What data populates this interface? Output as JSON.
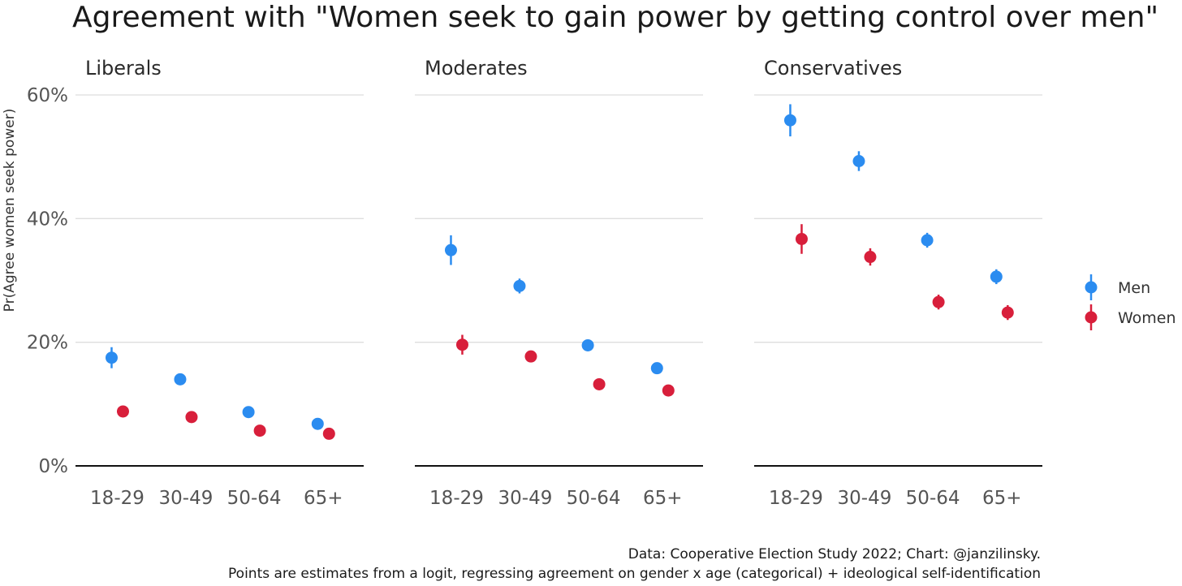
{
  "chart_data": {
    "type": "scatter",
    "title": "Agreement with \"Women seek to gain power by getting control over men\"",
    "ylabel": "Pr(Agree women seek power)",
    "xlabel": "",
    "ylim": [
      0,
      60
    ],
    "yticks": [
      0,
      20,
      40,
      60
    ],
    "ytick_labels": [
      "0%",
      "20%",
      "40%",
      "60%"
    ],
    "categories": [
      "18-29",
      "30-49",
      "50-64",
      "65+"
    ],
    "grid": true,
    "legend_position": "right",
    "colors": {
      "Men": "#2b8cf0",
      "Women": "#d81f3b"
    },
    "panels": [
      {
        "name": "Liberals",
        "series": [
          {
            "name": "Men",
            "values": [
              17.5,
              14.0,
              8.7,
              6.8
            ],
            "lower": [
              15.8,
              13.2,
              8.0,
              6.0
            ],
            "upper": [
              19.2,
              14.8,
              9.4,
              7.6
            ]
          },
          {
            "name": "Women",
            "values": [
              8.8,
              7.9,
              5.7,
              5.2
            ],
            "lower": [
              8.0,
              7.2,
              5.0,
              4.6
            ],
            "upper": [
              9.6,
              8.6,
              6.4,
              5.8
            ]
          }
        ]
      },
      {
        "name": "Moderates",
        "series": [
          {
            "name": "Men",
            "values": [
              34.9,
              29.1,
              19.5,
              15.8
            ],
            "lower": [
              32.5,
              27.9,
              18.7,
              15.0
            ],
            "upper": [
              37.3,
              30.3,
              20.3,
              16.6
            ]
          },
          {
            "name": "Women",
            "values": [
              19.6,
              17.7,
              13.2,
              12.2
            ],
            "lower": [
              18.0,
              16.9,
              12.4,
              11.4
            ],
            "upper": [
              21.2,
              18.5,
              14.0,
              13.0
            ]
          }
        ]
      },
      {
        "name": "Conservatives",
        "series": [
          {
            "name": "Men",
            "values": [
              55.9,
              49.3,
              36.5,
              30.6
            ],
            "lower": [
              53.3,
              47.7,
              35.3,
              29.4
            ],
            "upper": [
              58.5,
              50.9,
              37.7,
              31.8
            ]
          },
          {
            "name": "Women",
            "values": [
              36.7,
              33.8,
              26.5,
              24.8
            ],
            "lower": [
              34.3,
              32.4,
              25.3,
              23.6
            ],
            "upper": [
              39.1,
              35.2,
              27.7,
              26.0
            ]
          }
        ]
      }
    ],
    "caption_lines": [
      "Data: Cooperative Election Study 2022; Chart: @janzilinsky.",
      "Points are estimates from a logit, regressing agreement on gender x age (categorical) + ideological self-identification"
    ]
  }
}
